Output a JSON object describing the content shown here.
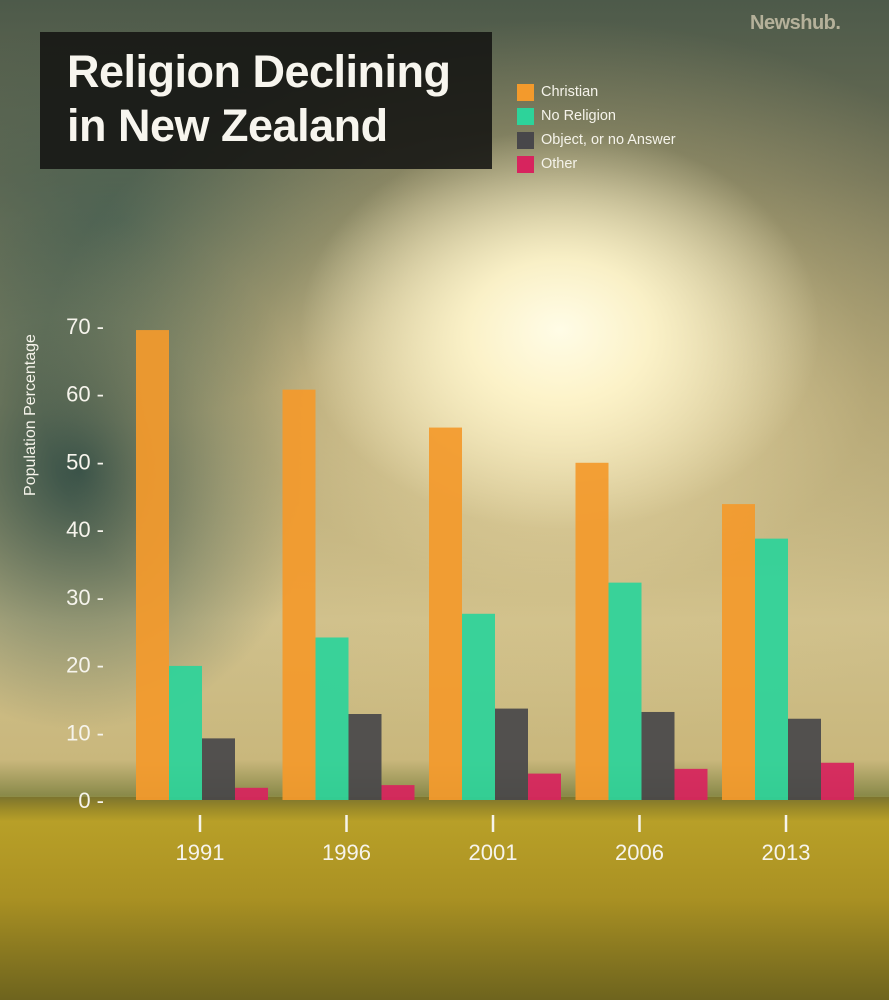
{
  "brand": "Newshub.",
  "chart_data": {
    "type": "bar",
    "title": "Religion Declining in New Zealand",
    "title_lines": [
      "Religion Declining",
      "in New Zealand"
    ],
    "xlabel": "",
    "ylabel": "Population Percentage",
    "ylim": [
      0,
      70
    ],
    "yticks": [
      0,
      10,
      20,
      30,
      40,
      50,
      60,
      70
    ],
    "ytick_labels": [
      "0 -",
      "10 -",
      "20 -",
      "30 -",
      "40 -",
      "50 -",
      "60 -",
      "70 -"
    ],
    "categories": [
      "1991",
      "1996",
      "2001",
      "2006",
      "2013"
    ],
    "legend_position": "top-right",
    "grid": false,
    "series": [
      {
        "name": "Christian",
        "color": "#F39A2C",
        "values": [
          69.4,
          60.6,
          55.0,
          49.8,
          43.7
        ]
      },
      {
        "name": "No Religion",
        "color": "#2DD39A",
        "values": [
          19.8,
          24.0,
          27.5,
          32.1,
          38.6
        ]
      },
      {
        "name": "Object, or no Answer",
        "color": "#48474A",
        "values": [
          9.1,
          12.7,
          13.5,
          13.0,
          12.0
        ]
      },
      {
        "name": "Other",
        "color": "#D7245E",
        "values": [
          1.8,
          2.2,
          3.9,
          4.6,
          5.5
        ]
      }
    ]
  }
}
